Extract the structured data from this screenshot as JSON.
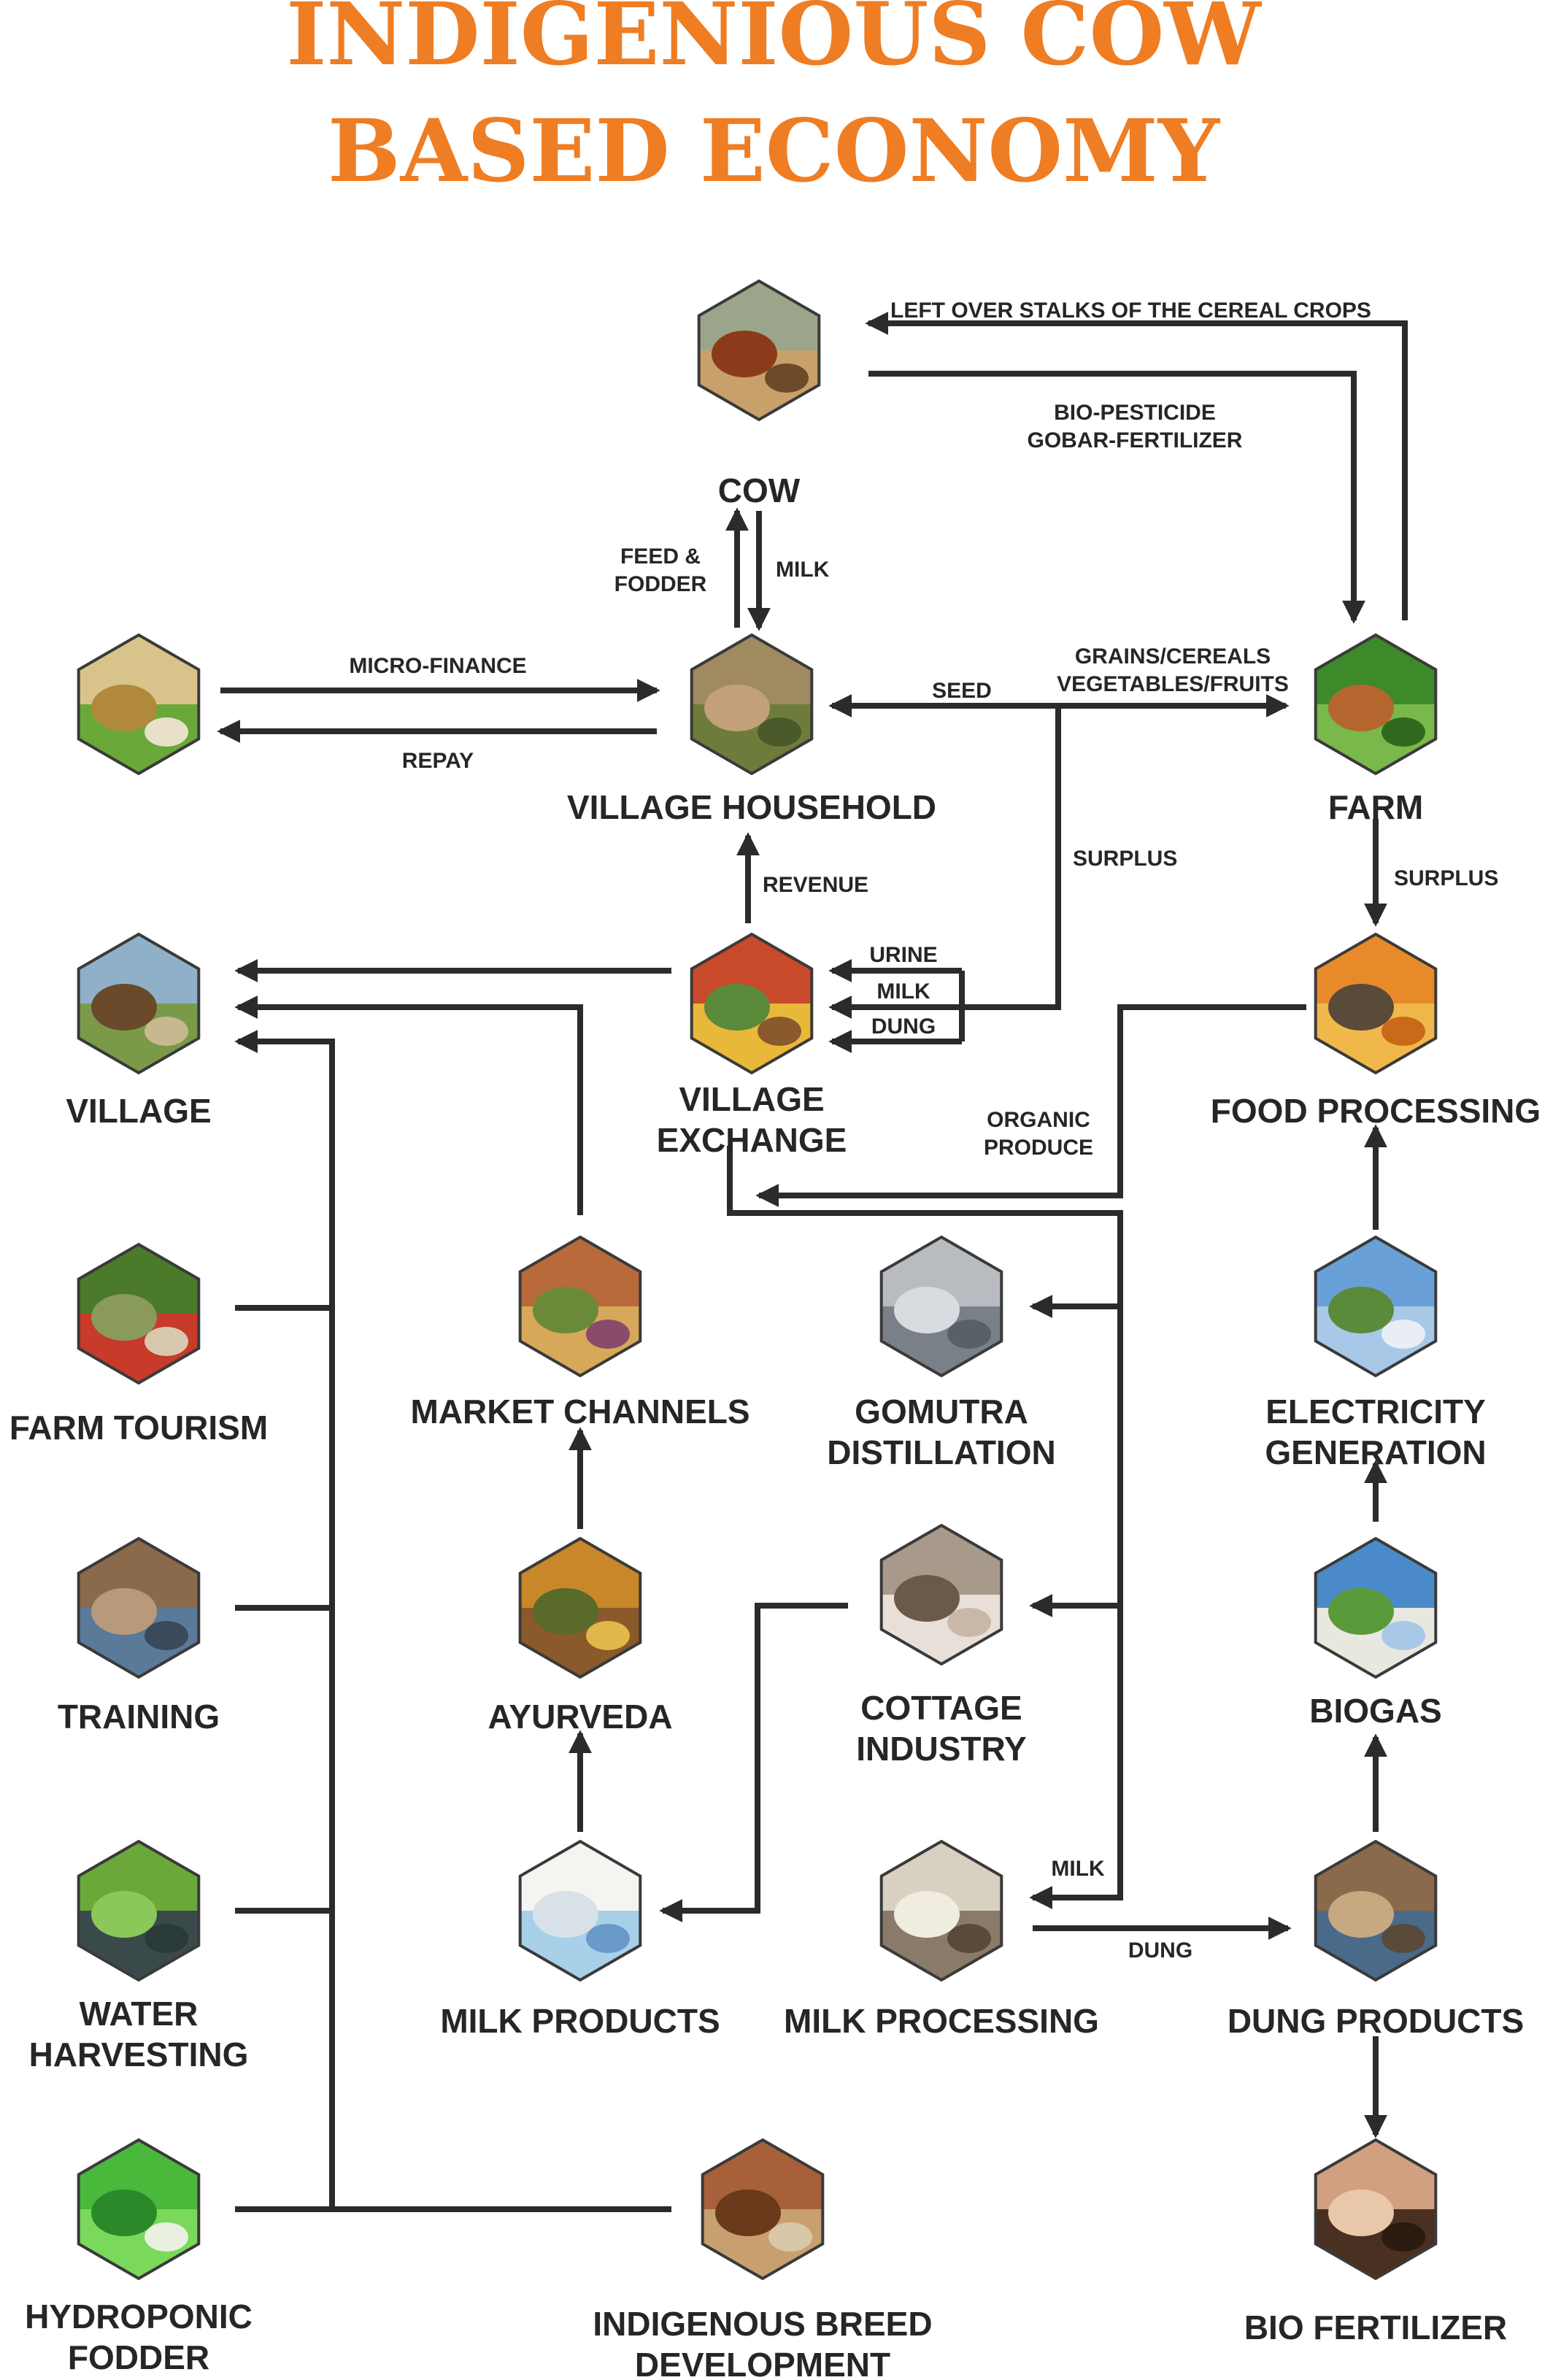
{
  "title": {
    "line1": "INDIGENIOUS COW",
    "line2": "BASED ECONOMY"
  },
  "nodes": {
    "cow": {
      "label": [
        "COW"
      ],
      "icon": "cow-photo-icon"
    },
    "farm": {
      "label": [
        "FARM"
      ],
      "icon": "farm-photo-icon"
    },
    "village_household": {
      "label": [
        "VILLAGE HOUSEHOLD"
      ],
      "icon": "village-household-photo-icon"
    },
    "microfinance": {
      "label": [],
      "icon": "coins-plant-photo-icon"
    },
    "village": {
      "label": [
        "VILLAGE"
      ],
      "icon": "village-photo-icon"
    },
    "village_exchange": {
      "label": [
        "VILLAGE",
        "EXCHANGE"
      ],
      "icon": "market-goods-photo-icon"
    },
    "food_processing": {
      "label": [
        "FOOD PROCESSING"
      ],
      "icon": "food-processing-photo-icon"
    },
    "farm_tourism": {
      "label": [
        "FARM TOURISM"
      ],
      "icon": "farm-tourism-photo-icon"
    },
    "market_channels": {
      "label": [
        "MARKET CHANNELS"
      ],
      "icon": "market-channels-photo-icon"
    },
    "gomutra_distillation": {
      "label": [
        "GOMUTRA",
        "DISTILLATION"
      ],
      "icon": "distillation-photo-icon"
    },
    "electricity_generation": {
      "label": [
        "ELECTRICITY",
        "GENERATION"
      ],
      "icon": "wind-turbine-photo-icon"
    },
    "training": {
      "label": [
        "TRAINING"
      ],
      "icon": "training-photo-icon"
    },
    "ayurveda": {
      "label": [
        "AYURVEDA"
      ],
      "icon": "ayurveda-photo-icon"
    },
    "cottage_industry": {
      "label": [
        "COTTAGE",
        "INDUSTRY"
      ],
      "icon": "cottage-industry-photo-icon"
    },
    "biogas": {
      "label": [
        "BIOGAS"
      ],
      "icon": "biogas-plant-photo-icon"
    },
    "water_harvesting": {
      "label": [
        "WATER",
        "HARVESTING"
      ],
      "icon": "water-pond-photo-icon"
    },
    "milk_products": {
      "label": [
        "MILK PRODUCTS"
      ],
      "icon": "milk-products-photo-icon"
    },
    "milk_processing": {
      "label": [
        "MILK PROCESSING"
      ],
      "icon": "milk-processing-photo-icon"
    },
    "dung_products": {
      "label": [
        "DUNG PRODUCTS"
      ],
      "icon": "dung-products-photo-icon"
    },
    "hydroponic_fodder": {
      "label": [
        "HYDROPONIC",
        "FODDER"
      ],
      "icon": "hydroponic-grass-photo-icon"
    },
    "indigenous_breed": {
      "label": [
        "INDIGENOUS BREED",
        "DEVELOPMENT"
      ],
      "icon": "cow-calf-photo-icon"
    },
    "bio_fertilizer": {
      "label": [
        "BIO FERTILIZER"
      ],
      "icon": "fertilizer-hands-photo-icon"
    }
  },
  "edge_labels": {
    "left_over_stalks": "LEFT OVER STALKS OF THE CEREAL CROPS",
    "bio_pesticide": "BIO-PESTICIDE",
    "gobar_fertilizer": "GOBAR-FERTILIZER",
    "feed": "FEED &",
    "fodder": "FODDER",
    "milk_cow": "MILK",
    "micro_finance": "MICRO-FINANCE",
    "repay": "REPAY",
    "seed": "SEED",
    "grains_cereals": "GRAINS/CEREALS",
    "vegetables_fruits": "VEGETABLES/FRUITS",
    "surplus_household": "SURPLUS",
    "surplus_farm": "SURPLUS",
    "revenue": "REVENUE",
    "urine": "URINE",
    "milk_exchange": "MILK",
    "dung_exchange": "DUNG",
    "organic": "ORGANIC",
    "produce": "PRODUCE",
    "milk_processing_in": "MILK",
    "dung_out": "DUNG"
  },
  "colors": {
    "title": "#ee7d24",
    "lines": "#2b2b2b",
    "text": "#262626",
    "background": "#ffffff"
  }
}
